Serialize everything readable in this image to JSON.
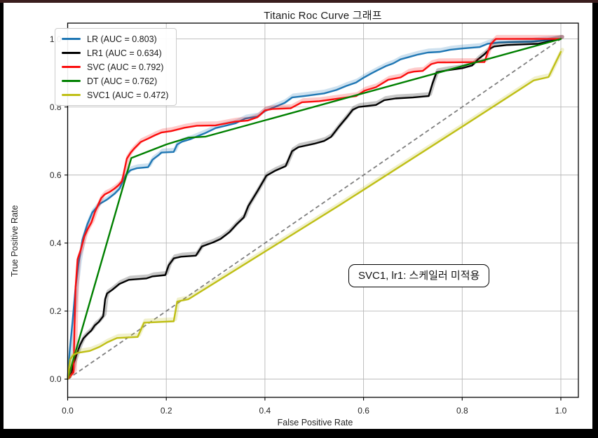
{
  "window": {
    "background": "#000000",
    "top_strip_color": "#3a1d1d"
  },
  "chart_data": {
    "type": "line",
    "title": "Titanic Roc Curve 그래프",
    "xlabel": "False Positive Rate",
    "ylabel": "True Positive Rate",
    "xlim": [
      0.0,
      1.0
    ],
    "ylim": [
      0.0,
      1.0
    ],
    "xticks": [
      "0.0",
      "0.2",
      "0.4",
      "0.6",
      "0.8",
      "1.0"
    ],
    "yticks": [
      "0.0",
      "0.2",
      "0.4",
      "0.6",
      "0.8",
      "1.0"
    ],
    "grid": true,
    "grid_color": "#b8b8b8",
    "legend_position": "upper left",
    "annotation": {
      "text": "SVC1, lr1: 스케일러 미적용"
    },
    "diagonal": {
      "name": "chance-line",
      "color": "#7f7f7f",
      "dash": "6 4",
      "width": 1.8,
      "points": [
        [
          0,
          0
        ],
        [
          1,
          1
        ]
      ]
    },
    "series": [
      {
        "name": "LR",
        "auc": 0.803,
        "label": "LR (AUC = 0.803)",
        "color": "#1f77b4",
        "halo": true,
        "points": [
          [
            0,
            0
          ],
          [
            0.004,
            0.08
          ],
          [
            0.01,
            0.17
          ],
          [
            0.016,
            0.27
          ],
          [
            0.022,
            0.34
          ],
          [
            0.03,
            0.41
          ],
          [
            0.04,
            0.455
          ],
          [
            0.05,
            0.49
          ],
          [
            0.065,
            0.515
          ],
          [
            0.08,
            0.528
          ],
          [
            0.095,
            0.545
          ],
          [
            0.105,
            0.56
          ],
          [
            0.118,
            0.6
          ],
          [
            0.127,
            0.614
          ],
          [
            0.14,
            0.62
          ],
          [
            0.163,
            0.623
          ],
          [
            0.172,
            0.645
          ],
          [
            0.184,
            0.658
          ],
          [
            0.19,
            0.666
          ],
          [
            0.215,
            0.668
          ],
          [
            0.222,
            0.69
          ],
          [
            0.232,
            0.698
          ],
          [
            0.25,
            0.706
          ],
          [
            0.265,
            0.715
          ],
          [
            0.28,
            0.724
          ],
          [
            0.3,
            0.738
          ],
          [
            0.32,
            0.745
          ],
          [
            0.34,
            0.752
          ],
          [
            0.36,
            0.766
          ],
          [
            0.385,
            0.772
          ],
          [
            0.4,
            0.788
          ],
          [
            0.42,
            0.8
          ],
          [
            0.44,
            0.812
          ],
          [
            0.455,
            0.828
          ],
          [
            0.48,
            0.832
          ],
          [
            0.5,
            0.836
          ],
          [
            0.52,
            0.84
          ],
          [
            0.545,
            0.85
          ],
          [
            0.565,
            0.862
          ],
          [
            0.585,
            0.872
          ],
          [
            0.6,
            0.886
          ],
          [
            0.615,
            0.898
          ],
          [
            0.628,
            0.908
          ],
          [
            0.645,
            0.92
          ],
          [
            0.66,
            0.928
          ],
          [
            0.675,
            0.94
          ],
          [
            0.69,
            0.946
          ],
          [
            0.71,
            0.954
          ],
          [
            0.73,
            0.96
          ],
          [
            0.755,
            0.962
          ],
          [
            0.775,
            0.968
          ],
          [
            0.8,
            0.972
          ],
          [
            0.835,
            0.976
          ],
          [
            0.852,
            0.986
          ],
          [
            0.875,
            0.99
          ],
          [
            0.94,
            0.992
          ],
          [
            1,
            1
          ]
        ]
      },
      {
        "name": "LR1",
        "auc": 0.634,
        "label": "LR1 (AUC = 0.634)",
        "color": "#000000",
        "halo": true,
        "points": [
          [
            0,
            0
          ],
          [
            0.008,
            0.02
          ],
          [
            0.012,
            0.045
          ],
          [
            0.018,
            0.072
          ],
          [
            0.025,
            0.1
          ],
          [
            0.032,
            0.12
          ],
          [
            0.04,
            0.132
          ],
          [
            0.048,
            0.143
          ],
          [
            0.055,
            0.158
          ],
          [
            0.063,
            0.168
          ],
          [
            0.072,
            0.185
          ],
          [
            0.076,
            0.235
          ],
          [
            0.08,
            0.252
          ],
          [
            0.09,
            0.262
          ],
          [
            0.105,
            0.28
          ],
          [
            0.124,
            0.292
          ],
          [
            0.16,
            0.296
          ],
          [
            0.172,
            0.302
          ],
          [
            0.198,
            0.306
          ],
          [
            0.205,
            0.335
          ],
          [
            0.215,
            0.355
          ],
          [
            0.23,
            0.36
          ],
          [
            0.26,
            0.363
          ],
          [
            0.272,
            0.39
          ],
          [
            0.295,
            0.402
          ],
          [
            0.31,
            0.412
          ],
          [
            0.328,
            0.432
          ],
          [
            0.343,
            0.456
          ],
          [
            0.357,
            0.475
          ],
          [
            0.366,
            0.508
          ],
          [
            0.385,
            0.553
          ],
          [
            0.403,
            0.598
          ],
          [
            0.42,
            0.612
          ],
          [
            0.442,
            0.626
          ],
          [
            0.455,
            0.67
          ],
          [
            0.468,
            0.682
          ],
          [
            0.5,
            0.692
          ],
          [
            0.52,
            0.7
          ],
          [
            0.534,
            0.712
          ],
          [
            0.55,
            0.742
          ],
          [
            0.565,
            0.768
          ],
          [
            0.578,
            0.792
          ],
          [
            0.59,
            0.8
          ],
          [
            0.625,
            0.806
          ],
          [
            0.642,
            0.82
          ],
          [
            0.665,
            0.825
          ],
          [
            0.7,
            0.828
          ],
          [
            0.732,
            0.832
          ],
          [
            0.74,
            0.87
          ],
          [
            0.748,
            0.902
          ],
          [
            0.77,
            0.908
          ],
          [
            0.8,
            0.914
          ],
          [
            0.82,
            0.922
          ],
          [
            0.832,
            0.94
          ],
          [
            0.845,
            0.955
          ],
          [
            0.857,
            0.972
          ],
          [
            0.865,
            0.978
          ],
          [
            0.89,
            0.982
          ],
          [
            0.955,
            0.986
          ],
          [
            1,
            1
          ]
        ]
      },
      {
        "name": "SVC",
        "auc": 0.792,
        "label": "SVC (AUC = 0.792)",
        "color": "#fb0d0d",
        "halo": true,
        "points": [
          [
            0,
            0
          ],
          [
            0.012,
            0.02
          ],
          [
            0.014,
            0.16
          ],
          [
            0.016,
            0.27
          ],
          [
            0.02,
            0.352
          ],
          [
            0.027,
            0.382
          ],
          [
            0.034,
            0.42
          ],
          [
            0.041,
            0.442
          ],
          [
            0.048,
            0.46
          ],
          [
            0.055,
            0.49
          ],
          [
            0.062,
            0.513
          ],
          [
            0.068,
            0.532
          ],
          [
            0.075,
            0.543
          ],
          [
            0.085,
            0.55
          ],
          [
            0.095,
            0.56
          ],
          [
            0.103,
            0.57
          ],
          [
            0.11,
            0.582
          ],
          [
            0.113,
            0.6
          ],
          [
            0.12,
            0.648
          ],
          [
            0.128,
            0.666
          ],
          [
            0.135,
            0.678
          ],
          [
            0.148,
            0.697
          ],
          [
            0.163,
            0.707
          ],
          [
            0.177,
            0.717
          ],
          [
            0.19,
            0.725
          ],
          [
            0.21,
            0.729
          ],
          [
            0.237,
            0.739
          ],
          [
            0.262,
            0.745
          ],
          [
            0.3,
            0.746
          ],
          [
            0.322,
            0.752
          ],
          [
            0.34,
            0.757
          ],
          [
            0.365,
            0.76
          ],
          [
            0.385,
            0.77
          ],
          [
            0.4,
            0.79
          ],
          [
            0.415,
            0.794
          ],
          [
            0.452,
            0.796
          ],
          [
            0.475,
            0.814
          ],
          [
            0.51,
            0.817
          ],
          [
            0.535,
            0.822
          ],
          [
            0.56,
            0.827
          ],
          [
            0.585,
            0.832
          ],
          [
            0.602,
            0.848
          ],
          [
            0.625,
            0.858
          ],
          [
            0.65,
            0.88
          ],
          [
            0.675,
            0.887
          ],
          [
            0.69,
            0.9
          ],
          [
            0.702,
            0.904
          ],
          [
            0.72,
            0.906
          ],
          [
            0.737,
            0.926
          ],
          [
            0.75,
            0.931
          ],
          [
            0.845,
            0.932
          ],
          [
            0.858,
            0.985
          ],
          [
            0.868,
            1
          ],
          [
            1,
            1
          ]
        ]
      },
      {
        "name": "DT",
        "auc": 0.762,
        "label": "DT (AUC = 0.762)",
        "color": "#008000",
        "halo": false,
        "points": [
          [
            0,
            0
          ],
          [
            0.129,
            0.65
          ],
          [
            0.2,
            0.69
          ],
          [
            0.245,
            0.71
          ],
          [
            0.28,
            0.713
          ],
          [
            1,
            1
          ]
        ]
      },
      {
        "name": "SVC1",
        "auc": 0.472,
        "label": "SVC1 (AUC = 0.472)",
        "color": "#bfbf16",
        "halo": true,
        "points": [
          [
            0,
            0
          ],
          [
            0.005,
            0.058
          ],
          [
            0.012,
            0.072
          ],
          [
            0.02,
            0.077
          ],
          [
            0.045,
            0.083
          ],
          [
            0.065,
            0.095
          ],
          [
            0.08,
            0.108
          ],
          [
            0.1,
            0.121
          ],
          [
            0.142,
            0.124
          ],
          [
            0.155,
            0.166
          ],
          [
            0.215,
            0.17
          ],
          [
            0.222,
            0.228
          ],
          [
            0.245,
            0.235
          ],
          [
            0.55,
            0.51
          ],
          [
            0.8,
            0.742
          ],
          [
            0.945,
            0.878
          ],
          [
            0.975,
            0.888
          ],
          [
            1,
            0.962
          ]
        ]
      }
    ]
  }
}
